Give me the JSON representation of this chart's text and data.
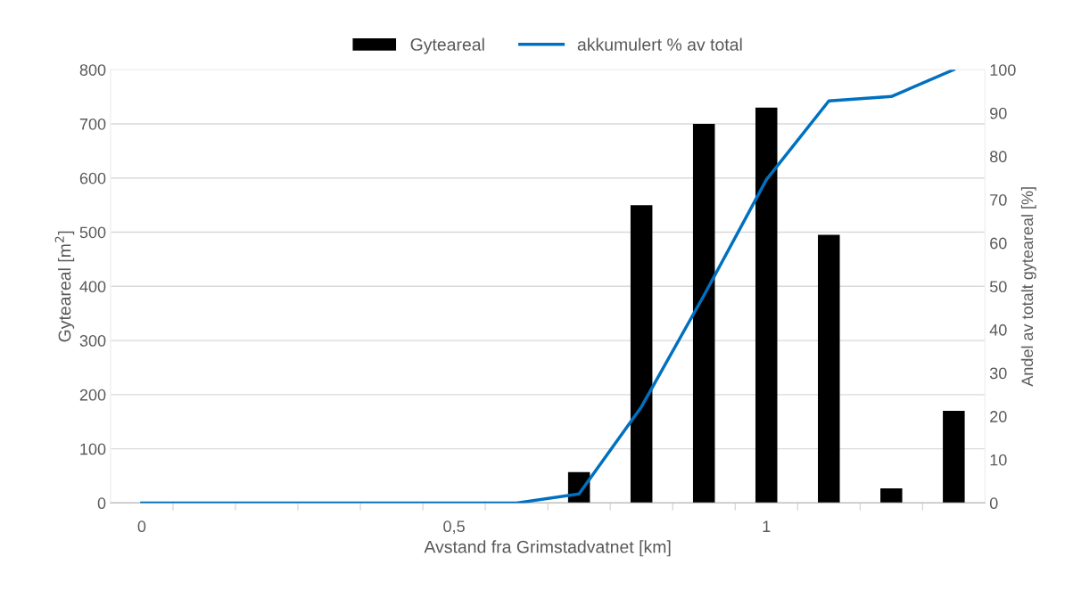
{
  "chart_data": {
    "type": "bar",
    "xlabel": "Avstand fra Grimstadvatnet [km]",
    "ylabel": "Gyteareal [m$^{2}$]",
    "y2label": "Andel av totalt gyteareal [%]",
    "categories": [
      "0",
      null,
      null,
      null,
      null,
      "0,5",
      null,
      null,
      null,
      null,
      "1",
      null,
      null,
      null
    ],
    "series": [
      {
        "name": "Gyteareal",
        "color": "#000000",
        "values": [
          0,
          0,
          0,
          0,
          0,
          0,
          0,
          57,
          550,
          700,
          730,
          495,
          27,
          170
        ]
      },
      {
        "name": "akkumulert % av total",
        "type": "line",
        "axis": "y2",
        "color": "#0070c0",
        "values": [
          0,
          0,
          0,
          0,
          0,
          0,
          0,
          2.1,
          22.2,
          47.9,
          74.6,
          92.8,
          93.8,
          100
        ]
      }
    ],
    "ylim": [
      0,
      800
    ],
    "yticks": [
      0,
      100,
      200,
      300,
      400,
      500,
      600,
      700,
      800
    ],
    "y2lim": [
      0,
      100
    ],
    "y2ticks": [
      0,
      10,
      20,
      30,
      40,
      50,
      60,
      70,
      80,
      90,
      100
    ],
    "grid": "y",
    "legend": "top",
    "marker": "none",
    "line_style": "solid"
  }
}
